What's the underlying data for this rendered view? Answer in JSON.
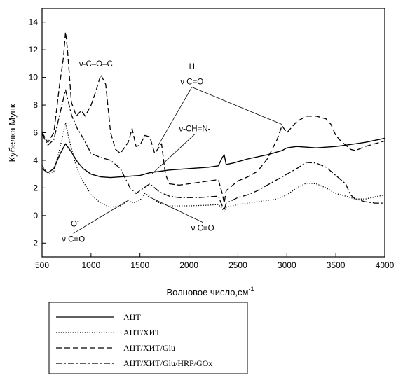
{
  "chart_data": {
    "type": "line",
    "xlabel": "Волновое число,см",
    "xlabel_sup": "-1",
    "ylabel": "Кубелка Мунк",
    "xlim": [
      500,
      4000
    ],
    "ylim": [
      -3,
      15
    ],
    "xticks": [
      500,
      1000,
      1500,
      2000,
      2500,
      3000,
      3500,
      4000
    ],
    "yticks": [
      -2,
      0,
      2,
      4,
      6,
      8,
      10,
      12,
      14
    ],
    "grid": false,
    "legend_position": "below",
    "series": [
      {
        "name": "АЦТ",
        "dash": "solid",
        "points": [
          [
            500,
            3.4
          ],
          [
            560,
            3.1
          ],
          [
            620,
            3.4
          ],
          [
            680,
            4.4
          ],
          [
            740,
            5.2
          ],
          [
            800,
            4.6
          ],
          [
            860,
            3.9
          ],
          [
            920,
            3.4
          ],
          [
            1000,
            3.0
          ],
          [
            1100,
            2.8
          ],
          [
            1200,
            2.75
          ],
          [
            1300,
            2.8
          ],
          [
            1400,
            2.85
          ],
          [
            1500,
            2.9
          ],
          [
            1600,
            3.1
          ],
          [
            1700,
            3.2
          ],
          [
            1800,
            3.3
          ],
          [
            1900,
            3.35
          ],
          [
            2000,
            3.4
          ],
          [
            2100,
            3.45
          ],
          [
            2200,
            3.5
          ],
          [
            2300,
            3.6
          ],
          [
            2340,
            4.2
          ],
          [
            2360,
            4.4
          ],
          [
            2380,
            3.7
          ],
          [
            2450,
            3.8
          ],
          [
            2600,
            4.1
          ],
          [
            2800,
            4.4
          ],
          [
            2950,
            4.7
          ],
          [
            3000,
            4.9
          ],
          [
            3100,
            5.0
          ],
          [
            3300,
            4.9
          ],
          [
            3500,
            5.0
          ],
          [
            3600,
            5.1
          ],
          [
            3800,
            5.3
          ],
          [
            4000,
            5.6
          ]
        ]
      },
      {
        "name": "АЦТ/ХИТ",
        "dash": "dotted",
        "points": [
          [
            500,
            3.6
          ],
          [
            560,
            3.0
          ],
          [
            620,
            3.2
          ],
          [
            680,
            4.8
          ],
          [
            740,
            6.7
          ],
          [
            780,
            5.4
          ],
          [
            840,
            3.8
          ],
          [
            900,
            2.7
          ],
          [
            1000,
            1.5
          ],
          [
            1100,
            0.9
          ],
          [
            1200,
            0.6
          ],
          [
            1300,
            0.7
          ],
          [
            1380,
            1.1
          ],
          [
            1430,
            0.9
          ],
          [
            1500,
            1.1
          ],
          [
            1550,
            1.6
          ],
          [
            1600,
            1.4
          ],
          [
            1700,
            0.9
          ],
          [
            1800,
            0.7
          ],
          [
            1900,
            0.7
          ],
          [
            2000,
            0.7
          ],
          [
            2200,
            0.75
          ],
          [
            2300,
            0.8
          ],
          [
            2340,
            0.5
          ],
          [
            2360,
            0.3
          ],
          [
            2380,
            0.6
          ],
          [
            2500,
            0.8
          ],
          [
            2700,
            1.0
          ],
          [
            2900,
            1.2
          ],
          [
            3000,
            1.5
          ],
          [
            3100,
            2.0
          ],
          [
            3200,
            2.35
          ],
          [
            3300,
            2.3
          ],
          [
            3400,
            2.0
          ],
          [
            3500,
            1.6
          ],
          [
            3600,
            1.4
          ],
          [
            3700,
            1.2
          ],
          [
            3800,
            1.2
          ],
          [
            4000,
            1.5
          ]
        ]
      },
      {
        "name": "АЦТ/ХИТ/Glu",
        "dash": "dashed",
        "points": [
          [
            500,
            6.0
          ],
          [
            560,
            5.3
          ],
          [
            620,
            6.0
          ],
          [
            680,
            9.5
          ],
          [
            720,
            11.5
          ],
          [
            740,
            13.3
          ],
          [
            760,
            12.0
          ],
          [
            800,
            8.2
          ],
          [
            850,
            7.2
          ],
          [
            900,
            7.6
          ],
          [
            940,
            7.2
          ],
          [
            1000,
            8.0
          ],
          [
            1050,
            9.0
          ],
          [
            1100,
            10.2
          ],
          [
            1150,
            9.5
          ],
          [
            1200,
            6.0
          ],
          [
            1250,
            4.8
          ],
          [
            1300,
            4.5
          ],
          [
            1380,
            5.3
          ],
          [
            1420,
            6.3
          ],
          [
            1460,
            5.0
          ],
          [
            1500,
            5.1
          ],
          [
            1550,
            5.8
          ],
          [
            1600,
            5.7
          ],
          [
            1650,
            4.5
          ],
          [
            1700,
            5.0
          ],
          [
            1720,
            5.2
          ],
          [
            1760,
            3.0
          ],
          [
            1800,
            2.3
          ],
          [
            1900,
            2.2
          ],
          [
            2000,
            2.3
          ],
          [
            2100,
            2.4
          ],
          [
            2200,
            2.5
          ],
          [
            2300,
            2.6
          ],
          [
            2340,
            1.6
          ],
          [
            2360,
            0.9
          ],
          [
            2380,
            1.8
          ],
          [
            2500,
            2.5
          ],
          [
            2600,
            2.8
          ],
          [
            2700,
            3.2
          ],
          [
            2800,
            4.1
          ],
          [
            2900,
            5.5
          ],
          [
            2950,
            6.5
          ],
          [
            3000,
            6.0
          ],
          [
            3100,
            6.8
          ],
          [
            3200,
            7.2
          ],
          [
            3300,
            7.2
          ],
          [
            3400,
            7.0
          ],
          [
            3450,
            6.6
          ],
          [
            3500,
            5.8
          ],
          [
            3550,
            5.4
          ],
          [
            3650,
            4.8
          ],
          [
            3700,
            4.7
          ],
          [
            3800,
            5.0
          ],
          [
            4000,
            5.4
          ]
        ]
      },
      {
        "name": "АЦТ/ХИТ/Glu/HRP/GOx",
        "dash": "dashdot",
        "points": [
          [
            500,
            5.9
          ],
          [
            560,
            5.1
          ],
          [
            620,
            5.5
          ],
          [
            680,
            7.3
          ],
          [
            740,
            9.1
          ],
          [
            800,
            7.3
          ],
          [
            860,
            6.3
          ],
          [
            920,
            5.6
          ],
          [
            1000,
            4.5
          ],
          [
            1100,
            4.2
          ],
          [
            1200,
            4.0
          ],
          [
            1300,
            3.4
          ],
          [
            1400,
            2.0
          ],
          [
            1460,
            1.6
          ],
          [
            1500,
            1.8
          ],
          [
            1600,
            2.3
          ],
          [
            1700,
            1.7
          ],
          [
            1800,
            1.4
          ],
          [
            1900,
            1.3
          ],
          [
            2000,
            1.3
          ],
          [
            2100,
            1.3
          ],
          [
            2200,
            1.35
          ],
          [
            2300,
            1.4
          ],
          [
            2340,
            0.7
          ],
          [
            2360,
            0.4
          ],
          [
            2380,
            0.9
          ],
          [
            2500,
            1.3
          ],
          [
            2600,
            1.5
          ],
          [
            2700,
            1.8
          ],
          [
            2800,
            2.2
          ],
          [
            2900,
            2.6
          ],
          [
            3000,
            3.0
          ],
          [
            3100,
            3.4
          ],
          [
            3200,
            3.85
          ],
          [
            3300,
            3.8
          ],
          [
            3400,
            3.5
          ],
          [
            3500,
            2.9
          ],
          [
            3600,
            2.3
          ],
          [
            3650,
            1.5
          ],
          [
            3700,
            1.2
          ],
          [
            3800,
            1.0
          ],
          [
            3900,
            0.9
          ],
          [
            4000,
            0.9
          ]
        ]
      }
    ],
    "annotations": [
      {
        "id": "c-o-c",
        "text": "ν-C–O–C",
        "text_at": [
          1050,
          10.8
        ],
        "arrow": false
      },
      {
        "id": "h-label",
        "text": "H",
        "text_at": [
          2030,
          10.6
        ],
        "arrow": false
      },
      {
        "id": "aldehyde",
        "text": "ν C=O",
        "text_at": [
          2030,
          9.5
        ],
        "arrow": true,
        "targets": [
          [
            1680,
            5.0
          ],
          [
            2950,
            6.6
          ]
        ]
      },
      {
        "id": "imine",
        "text": "ν-CH=N-",
        "text_at": [
          2060,
          6.1
        ],
        "arrow": true,
        "targets": [
          [
            1620,
            3.0
          ]
        ]
      },
      {
        "id": "carboxylate",
        "text": "ν C=O",
        "text_at": [
          820,
          -1.9
        ],
        "arrow": true,
        "targets": [
          [
            1380,
            1.1
          ]
        ]
      },
      {
        "id": "carboxylate-o",
        "text": "O",
        "sup": "-",
        "text_at": [
          835,
          -0.8
        ],
        "arrow": false
      },
      {
        "id": "carbonyl-low",
        "text": "ν C=O",
        "text_at": [
          2140,
          -1.1
        ],
        "arrow": true,
        "targets": [
          [
            1580,
            1.4
          ]
        ]
      }
    ]
  }
}
